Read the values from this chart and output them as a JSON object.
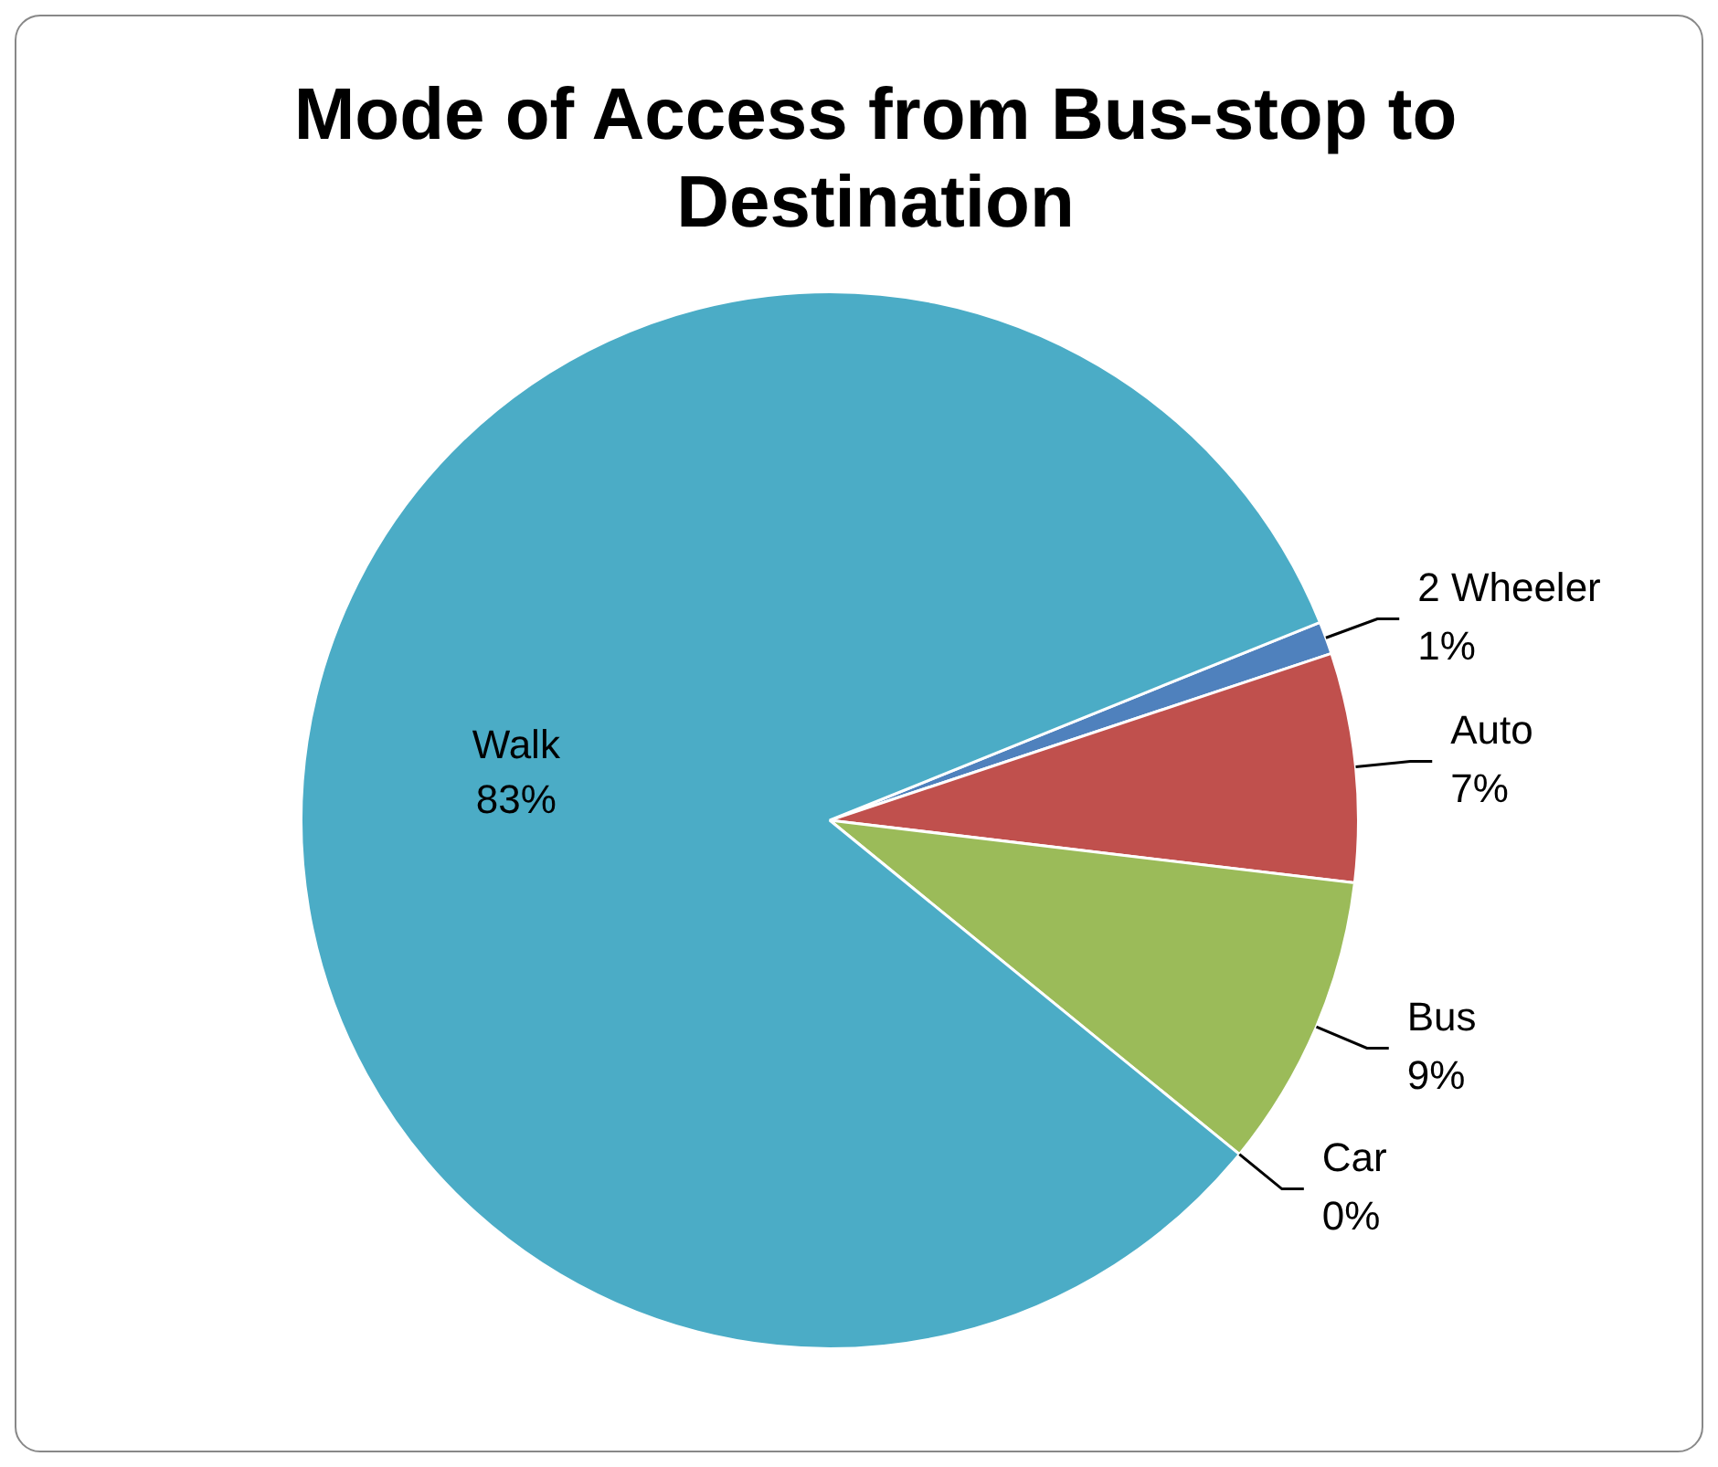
{
  "chart_data": {
    "type": "pie",
    "title": "Mode of Access from Bus-stop to Destination",
    "categories": [
      "2 Wheeler",
      "Auto",
      "Bus",
      "Car",
      "Walk"
    ],
    "values": [
      1,
      7,
      9,
      0,
      83
    ],
    "value_labels": [
      "1%",
      "7%",
      "9%",
      "0%",
      "83%"
    ],
    "colors": [
      "#4f81bd",
      "#c0504d",
      "#9bbb59",
      "#8064a2",
      "#4bacc6"
    ]
  }
}
